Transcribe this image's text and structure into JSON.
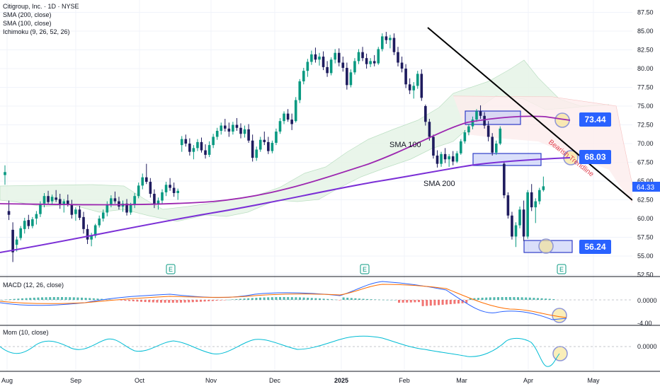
{
  "legend": {
    "title": "Citigroup, Inc. · 1D · NYSE",
    "sma200": "SMA (200, close)",
    "sma100": "SMA (100, close)",
    "ichimoku": "Ichimoku (9, 26, 52, 26)"
  },
  "macd_legend": "MACD (12, 26, close)",
  "mom_legend": "Mom (10, close)",
  "chart_data": {
    "type": "candlestick",
    "y_ticks": [
      "87.50",
      "85.00",
      "82.50",
      "80.00",
      "77.50",
      "75.00",
      "72.50",
      "70.00",
      "67.50",
      "65.00",
      "62.50",
      "60.00",
      "57.50",
      "55.00",
      "52.50"
    ],
    "ylim": [
      52.5,
      87.5
    ],
    "x_ticks": [
      "Aug",
      "Sep",
      "Oct",
      "Nov",
      "Dec",
      "2025",
      "Feb",
      "Mar",
      "Apr",
      "May"
    ],
    "last_price": "64.33",
    "level_labels": [
      "73.44",
      "68.03",
      "56.24"
    ],
    "annotations": [
      "SMA 100",
      "SMA 200",
      "Bearish Trendline"
    ],
    "earnings_marker": "E",
    "macd_ticks": [
      "0.0000",
      "-4.00"
    ],
    "mom_ticks": [
      "0.0000"
    ],
    "candles": [
      {
        "o": 65.8,
        "h": 67.1,
        "l": 64.5,
        "c": 66.2
      },
      {
        "o": 61.0,
        "h": 62.4,
        "l": 59.8,
        "c": 60.5
      },
      {
        "o": 58.5,
        "h": 59.5,
        "l": 54.2,
        "c": 55.5
      },
      {
        "o": 56.5,
        "h": 57.6,
        "l": 55.6,
        "c": 57.2
      },
      {
        "o": 57.4,
        "h": 59.0,
        "l": 57.1,
        "c": 58.7
      },
      {
        "o": 58.6,
        "h": 60.1,
        "l": 58.0,
        "c": 59.7
      },
      {
        "o": 59.8,
        "h": 60.5,
        "l": 58.6,
        "c": 59.0
      },
      {
        "o": 59.0,
        "h": 60.2,
        "l": 58.7,
        "c": 59.9
      },
      {
        "o": 60.0,
        "h": 61.0,
        "l": 59.2,
        "c": 60.6
      },
      {
        "o": 60.6,
        "h": 62.3,
        "l": 60.2,
        "c": 61.9
      },
      {
        "o": 62.0,
        "h": 63.4,
        "l": 61.5,
        "c": 63.0
      },
      {
        "o": 63.0,
        "h": 63.7,
        "l": 61.9,
        "c": 62.2
      },
      {
        "o": 62.3,
        "h": 63.2,
        "l": 61.8,
        "c": 62.9
      },
      {
        "o": 62.8,
        "h": 63.8,
        "l": 62.2,
        "c": 62.5
      },
      {
        "o": 62.6,
        "h": 63.3,
        "l": 61.3,
        "c": 61.8
      },
      {
        "o": 61.8,
        "h": 62.6,
        "l": 60.8,
        "c": 62.3
      },
      {
        "o": 62.4,
        "h": 63.2,
        "l": 61.6,
        "c": 61.9
      },
      {
        "o": 61.9,
        "h": 62.5,
        "l": 60.0,
        "c": 60.5
      },
      {
        "o": 60.6,
        "h": 61.5,
        "l": 59.7,
        "c": 61.2
      },
      {
        "o": 61.2,
        "h": 61.7,
        "l": 59.8,
        "c": 60.1
      },
      {
        "o": 60.2,
        "h": 60.9,
        "l": 58.0,
        "c": 58.6
      },
      {
        "o": 58.6,
        "h": 59.2,
        "l": 56.6,
        "c": 57.2
      },
      {
        "o": 57.2,
        "h": 58.1,
        "l": 56.3,
        "c": 57.7
      },
      {
        "o": 57.7,
        "h": 59.3,
        "l": 57.4,
        "c": 59.1
      },
      {
        "o": 59.1,
        "h": 60.4,
        "l": 58.8,
        "c": 60.0
      },
      {
        "o": 60.0,
        "h": 61.2,
        "l": 59.6,
        "c": 60.8
      },
      {
        "o": 60.8,
        "h": 62.3,
        "l": 60.3,
        "c": 61.9
      },
      {
        "o": 61.9,
        "h": 63.1,
        "l": 61.5,
        "c": 62.7
      },
      {
        "o": 62.7,
        "h": 63.6,
        "l": 62.0,
        "c": 62.3
      },
      {
        "o": 62.3,
        "h": 62.9,
        "l": 61.2,
        "c": 61.6
      },
      {
        "o": 61.6,
        "h": 62.4,
        "l": 60.9,
        "c": 62.0
      },
      {
        "o": 62.0,
        "h": 62.6,
        "l": 60.4,
        "c": 60.8
      },
      {
        "o": 60.8,
        "h": 62.1,
        "l": 60.5,
        "c": 61.8
      },
      {
        "o": 61.8,
        "h": 63.4,
        "l": 61.4,
        "c": 63.0
      },
      {
        "o": 63.0,
        "h": 64.8,
        "l": 62.7,
        "c": 64.4
      },
      {
        "o": 64.4,
        "h": 66.0,
        "l": 63.9,
        "c": 65.5
      },
      {
        "o": 65.5,
        "h": 67.3,
        "l": 64.6,
        "c": 64.9
      },
      {
        "o": 64.9,
        "h": 65.4,
        "l": 62.8,
        "c": 63.3
      },
      {
        "o": 63.3,
        "h": 63.9,
        "l": 61.4,
        "c": 61.9
      },
      {
        "o": 61.9,
        "h": 62.8,
        "l": 61.2,
        "c": 62.4
      },
      {
        "o": 62.4,
        "h": 63.9,
        "l": 61.9,
        "c": 63.5
      },
      {
        "o": 63.5,
        "h": 64.9,
        "l": 63.0,
        "c": 64.5
      },
      {
        "o": 64.5,
        "h": 65.4,
        "l": 63.7,
        "c": 64.1
      },
      {
        "o": 64.1,
        "h": 64.8,
        "l": 62.9,
        "c": 63.4
      },
      {
        "o": 63.4,
        "h": 64.0,
        "l": 62.5,
        "c": 63.7
      },
      {
        "o": 69.8,
        "h": 71.0,
        "l": 68.9,
        "c": 70.6
      },
      {
        "o": 70.6,
        "h": 71.2,
        "l": 69.6,
        "c": 70.0
      },
      {
        "o": 70.0,
        "h": 70.7,
        "l": 68.4,
        "c": 68.9
      },
      {
        "o": 68.9,
        "h": 69.8,
        "l": 67.9,
        "c": 69.4
      },
      {
        "o": 69.4,
        "h": 70.6,
        "l": 69.0,
        "c": 70.2
      },
      {
        "o": 70.2,
        "h": 70.8,
        "l": 68.8,
        "c": 69.1
      },
      {
        "o": 69.1,
        "h": 69.9,
        "l": 68.0,
        "c": 68.5
      },
      {
        "o": 68.5,
        "h": 70.3,
        "l": 68.2,
        "c": 69.8
      },
      {
        "o": 69.8,
        "h": 71.3,
        "l": 69.4,
        "c": 70.9
      },
      {
        "o": 70.9,
        "h": 72.1,
        "l": 70.5,
        "c": 71.7
      },
      {
        "o": 71.7,
        "h": 72.8,
        "l": 71.2,
        "c": 72.4
      },
      {
        "o": 72.4,
        "h": 73.3,
        "l": 71.6,
        "c": 72.0
      },
      {
        "o": 72.0,
        "h": 72.8,
        "l": 70.9,
        "c": 71.6
      },
      {
        "o": 71.6,
        "h": 72.9,
        "l": 71.2,
        "c": 72.5
      },
      {
        "o": 72.5,
        "h": 73.4,
        "l": 71.7,
        "c": 72.1
      },
      {
        "o": 72.1,
        "h": 72.7,
        "l": 70.7,
        "c": 71.3
      },
      {
        "o": 71.3,
        "h": 72.4,
        "l": 70.8,
        "c": 71.9
      },
      {
        "o": 71.9,
        "h": 72.6,
        "l": 70.1,
        "c": 70.4
      },
      {
        "o": 70.4,
        "h": 71.2,
        "l": 67.6,
        "c": 68.1
      },
      {
        "o": 68.1,
        "h": 69.6,
        "l": 67.7,
        "c": 69.2
      },
      {
        "o": 69.2,
        "h": 70.9,
        "l": 68.9,
        "c": 70.5
      },
      {
        "o": 70.5,
        "h": 71.6,
        "l": 69.8,
        "c": 70.2
      },
      {
        "o": 70.2,
        "h": 70.9,
        "l": 68.6,
        "c": 69.0
      },
      {
        "o": 69.0,
        "h": 70.4,
        "l": 68.7,
        "c": 70.1
      },
      {
        "o": 70.1,
        "h": 72.0,
        "l": 69.8,
        "c": 71.6
      },
      {
        "o": 71.6,
        "h": 73.4,
        "l": 71.3,
        "c": 73.0
      },
      {
        "o": 73.0,
        "h": 74.3,
        "l": 72.6,
        "c": 74.0
      },
      {
        "o": 74.0,
        "h": 74.6,
        "l": 72.9,
        "c": 73.2
      },
      {
        "o": 73.2,
        "h": 74.0,
        "l": 71.8,
        "c": 72.6
      },
      {
        "o": 73.0,
        "h": 76.2,
        "l": 72.8,
        "c": 75.8
      },
      {
        "o": 75.8,
        "h": 78.6,
        "l": 75.4,
        "c": 78.3
      },
      {
        "o": 78.3,
        "h": 80.1,
        "l": 77.9,
        "c": 79.7
      },
      {
        "o": 79.7,
        "h": 81.3,
        "l": 78.9,
        "c": 80.9
      },
      {
        "o": 80.9,
        "h": 82.4,
        "l": 80.5,
        "c": 81.9
      },
      {
        "o": 81.9,
        "h": 82.8,
        "l": 80.8,
        "c": 81.2
      },
      {
        "o": 81.2,
        "h": 82.1,
        "l": 80.4,
        "c": 81.6
      },
      {
        "o": 81.6,
        "h": 82.3,
        "l": 79.8,
        "c": 80.2
      },
      {
        "o": 80.2,
        "h": 81.0,
        "l": 78.9,
        "c": 79.4
      },
      {
        "o": 79.4,
        "h": 81.5,
        "l": 79.1,
        "c": 81.2
      },
      {
        "o": 81.2,
        "h": 82.6,
        "l": 80.7,
        "c": 82.1
      },
      {
        "o": 82.1,
        "h": 82.7,
        "l": 80.3,
        "c": 80.8
      },
      {
        "o": 80.8,
        "h": 81.6,
        "l": 79.6,
        "c": 80.1
      },
      {
        "o": 80.1,
        "h": 80.8,
        "l": 77.2,
        "c": 77.8
      },
      {
        "o": 77.8,
        "h": 79.9,
        "l": 77.5,
        "c": 79.5
      },
      {
        "o": 79.5,
        "h": 81.4,
        "l": 79.2,
        "c": 81.0
      },
      {
        "o": 81.0,
        "h": 82.6,
        "l": 80.6,
        "c": 82.2
      },
      {
        "o": 82.2,
        "h": 82.9,
        "l": 81.0,
        "c": 81.4
      },
      {
        "o": 81.4,
        "h": 82.0,
        "l": 80.0,
        "c": 80.6
      },
      {
        "o": 80.6,
        "h": 81.4,
        "l": 80.2,
        "c": 81.0
      },
      {
        "o": 81.0,
        "h": 81.8,
        "l": 80.3,
        "c": 80.7
      },
      {
        "o": 80.7,
        "h": 82.9,
        "l": 80.5,
        "c": 82.6
      },
      {
        "o": 82.6,
        "h": 84.7,
        "l": 82.3,
        "c": 84.3
      },
      {
        "o": 84.3,
        "h": 84.9,
        "l": 83.3,
        "c": 83.8
      },
      {
        "o": 83.8,
        "h": 84.5,
        "l": 82.7,
        "c": 84.1
      },
      {
        "o": 84.1,
        "h": 84.7,
        "l": 81.8,
        "c": 82.2
      },
      {
        "o": 82.2,
        "h": 82.9,
        "l": 80.3,
        "c": 80.8
      },
      {
        "o": 80.8,
        "h": 81.6,
        "l": 79.5,
        "c": 80.0
      },
      {
        "o": 80.0,
        "h": 80.6,
        "l": 77.4,
        "c": 77.9
      },
      {
        "o": 77.9,
        "h": 78.7,
        "l": 76.6,
        "c": 77.1
      },
      {
        "o": 77.1,
        "h": 78.2,
        "l": 76.0,
        "c": 77.7
      },
      {
        "o": 77.7,
        "h": 79.7,
        "l": 77.3,
        "c": 79.3
      },
      {
        "o": 79.3,
        "h": 79.9,
        "l": 75.7,
        "c": 76.1
      },
      {
        "o": 75.0,
        "h": 75.2,
        "l": 72.4,
        "c": 72.9
      },
      {
        "o": 72.9,
        "h": 73.3,
        "l": 70.4,
        "c": 70.9
      },
      {
        "o": 70.9,
        "h": 71.2,
        "l": 68.0,
        "c": 68.4
      },
      {
        "o": 68.4,
        "h": 69.1,
        "l": 66.8,
        "c": 67.3
      },
      {
        "o": 67.3,
        "h": 68.9,
        "l": 66.9,
        "c": 68.6
      },
      {
        "o": 68.6,
        "h": 69.4,
        "l": 67.4,
        "c": 67.9
      },
      {
        "o": 67.9,
        "h": 68.6,
        "l": 66.9,
        "c": 68.3
      },
      {
        "o": 68.3,
        "h": 69.0,
        "l": 67.1,
        "c": 67.6
      },
      {
        "o": 67.6,
        "h": 69.0,
        "l": 67.4,
        "c": 68.7
      },
      {
        "o": 68.7,
        "h": 70.6,
        "l": 68.5,
        "c": 70.3
      },
      {
        "o": 70.3,
        "h": 71.8,
        "l": 70.0,
        "c": 71.5
      },
      {
        "o": 71.5,
        "h": 72.6,
        "l": 71.1,
        "c": 72.3
      },
      {
        "o": 72.3,
        "h": 73.6,
        "l": 71.9,
        "c": 73.2
      },
      {
        "o": 73.2,
        "h": 74.6,
        "l": 72.9,
        "c": 74.3
      },
      {
        "o": 74.3,
        "h": 75.1,
        "l": 73.3,
        "c": 73.7
      },
      {
        "o": 73.7,
        "h": 74.2,
        "l": 72.0,
        "c": 72.4
      },
      {
        "o": 72.4,
        "h": 73.0,
        "l": 70.3,
        "c": 70.9
      },
      {
        "o": 70.9,
        "h": 71.4,
        "l": 68.4,
        "c": 68.8
      },
      {
        "o": 68.8,
        "h": 70.4,
        "l": 68.5,
        "c": 70.0
      },
      {
        "o": 70.0,
        "h": 72.3,
        "l": 69.8,
        "c": 72.0
      },
      {
        "o": 67.3,
        "h": 67.6,
        "l": 62.7,
        "c": 63.1
      },
      {
        "o": 63.1,
        "h": 63.5,
        "l": 60.0,
        "c": 60.4
      },
      {
        "o": 60.4,
        "h": 60.9,
        "l": 57.2,
        "c": 57.6
      },
      {
        "o": 57.6,
        "h": 59.5,
        "l": 56.2,
        "c": 59.1
      },
      {
        "o": 59.1,
        "h": 61.6,
        "l": 58.7,
        "c": 61.2
      },
      {
        "o": 61.2,
        "h": 62.4,
        "l": 57.0,
        "c": 57.6
      },
      {
        "o": 57.6,
        "h": 63.8,
        "l": 57.3,
        "c": 63.5
      },
      {
        "o": 63.5,
        "h": 64.6,
        "l": 61.0,
        "c": 61.5
      },
      {
        "o": 61.5,
        "h": 62.7,
        "l": 59.4,
        "c": 62.3
      },
      {
        "o": 62.3,
        "h": 64.1,
        "l": 61.9,
        "c": 63.8
      },
      {
        "o": 63.8,
        "h": 65.6,
        "l": 63.6,
        "c": 64.3
      }
    ]
  }
}
